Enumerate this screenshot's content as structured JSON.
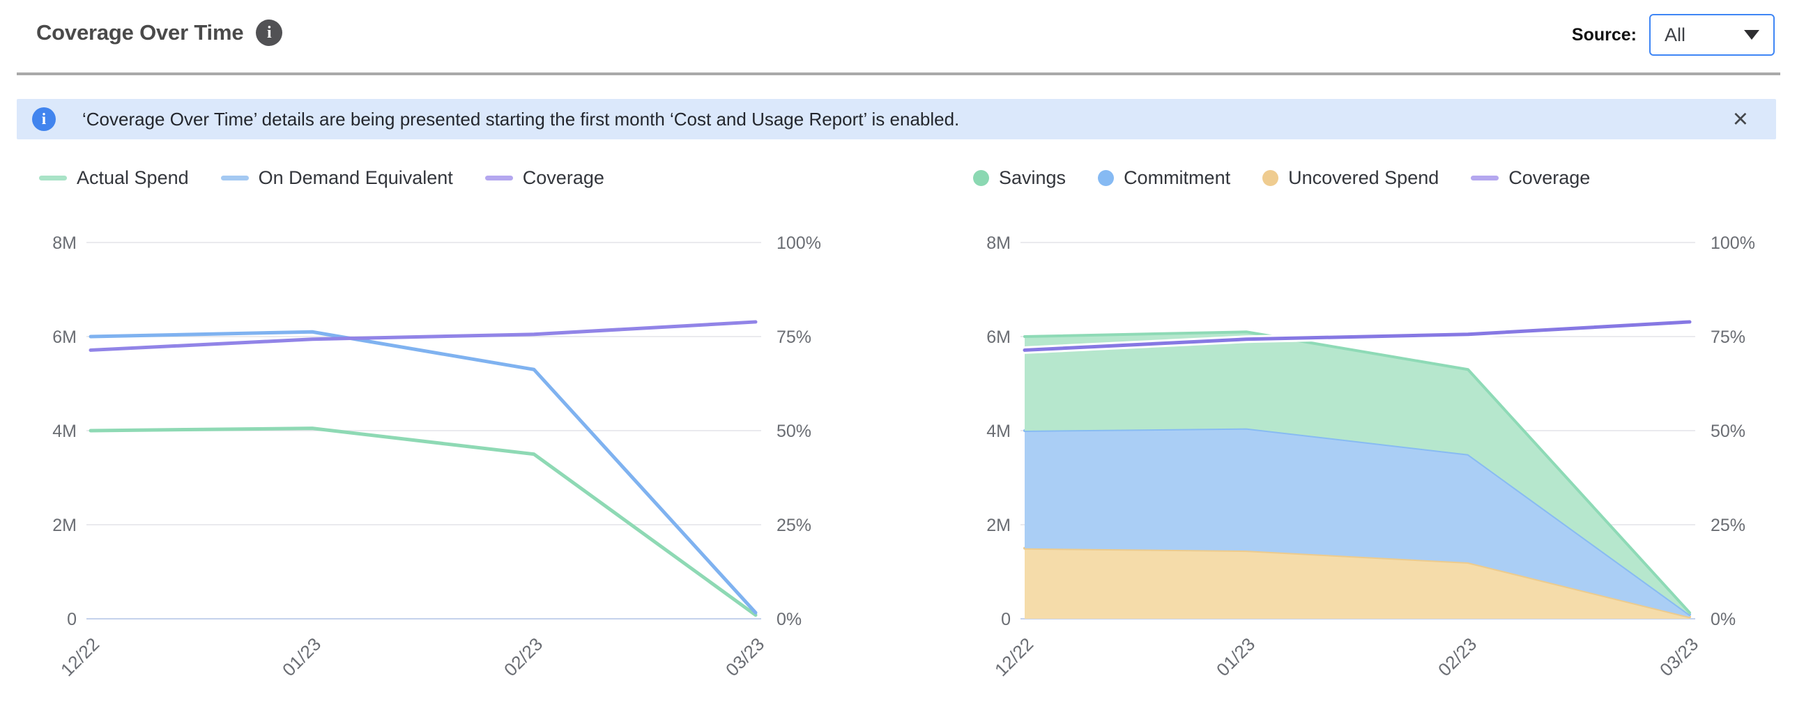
{
  "header": {
    "title": "Coverage Over Time",
    "source_label": "Source:",
    "source_value": "All"
  },
  "banner": {
    "text": "‘Coverage Over Time’ details are being presented starting the first month ‘Cost and Usage Report’ is enabled.",
    "close_label": "×"
  },
  "chart_data": [
    {
      "type": "line",
      "position": "left",
      "x": [
        "12/22",
        "01/23",
        "02/23",
        "03/23"
      ],
      "left_axis": {
        "ticks": [
          "8M",
          "6M",
          "4M",
          "2M",
          "0"
        ],
        "ylim_millions": [
          0,
          8
        ],
        "grid": true
      },
      "right_axis": {
        "ticks": [
          "100%",
          "75%",
          "50%",
          "25%",
          "0%"
        ],
        "ylim_percent": [
          0,
          100
        ]
      },
      "legend": [
        {
          "label": "Actual Spend",
          "swatch": "line",
          "color": "#a9e3c7"
        },
        {
          "label": "On Demand Equivalent",
          "swatch": "line",
          "color": "#a4c9f2"
        },
        {
          "label": "Coverage",
          "swatch": "line",
          "color": "#b4a7ef"
        }
      ],
      "series": [
        {
          "name": "Actual Spend",
          "kind": "line",
          "axis": "left",
          "color": "#8ed9b4",
          "values_millions": [
            4.0,
            4.05,
            3.5,
            0.08
          ]
        },
        {
          "name": "On Demand Equivalent",
          "kind": "line",
          "axis": "left",
          "color": "#7fb2f0",
          "values_millions": [
            6.0,
            6.1,
            5.3,
            0.13
          ]
        },
        {
          "name": "Coverage",
          "kind": "line",
          "axis": "right",
          "color": "#9184e7",
          "halo": false,
          "values_percent": [
            71.4,
            74.3,
            75.6,
            78.9
          ]
        }
      ]
    },
    {
      "type": "area",
      "position": "right",
      "x": [
        "12/22",
        "01/23",
        "02/23",
        "03/23"
      ],
      "left_axis": {
        "ticks": [
          "8M",
          "6M",
          "4M",
          "2M",
          "0"
        ],
        "ylim_millions": [
          0,
          8
        ],
        "grid": true
      },
      "right_axis": {
        "ticks": [
          "100%",
          "75%",
          "50%",
          "25%",
          "0%"
        ],
        "ylim_percent": [
          0,
          100
        ]
      },
      "legend": [
        {
          "label": "Savings",
          "swatch": "circle",
          "color": "#8bd8b2"
        },
        {
          "label": "Commitment",
          "swatch": "circle",
          "color": "#86baf3"
        },
        {
          "label": "Uncovered Spend",
          "swatch": "circle",
          "color": "#efcc90"
        },
        {
          "label": "Coverage",
          "swatch": "line",
          "color": "#b4a7ef"
        }
      ],
      "series": [
        {
          "name": "Uncovered Spend",
          "kind": "area-stack",
          "axis": "left",
          "fill": "#f5dcaa",
          "edge": "#eccb8e",
          "values_millions": [
            1.5,
            1.45,
            1.2,
            0.04
          ]
        },
        {
          "name": "Commitment",
          "kind": "area-stack",
          "axis": "left",
          "fill": "#aacef5",
          "edge": "#88bbf2",
          "values_millions": [
            2.5,
            2.6,
            2.3,
            0.05
          ]
        },
        {
          "name": "Savings",
          "kind": "area-stack",
          "axis": "left",
          "fill": "#b6e7cd",
          "edge": "#8edab6",
          "values_millions": [
            2.0,
            2.05,
            1.8,
            0.04
          ]
        },
        {
          "name": "Coverage",
          "kind": "line",
          "axis": "right",
          "color": "#8678e3",
          "halo": true,
          "values_percent": [
            71.4,
            74.3,
            75.6,
            78.9
          ]
        }
      ]
    }
  ],
  "style_colors": {
    "gridline": "#e4e4e8",
    "zero_line": "#c5d2ec",
    "axis_text": "#6a6d73"
  }
}
